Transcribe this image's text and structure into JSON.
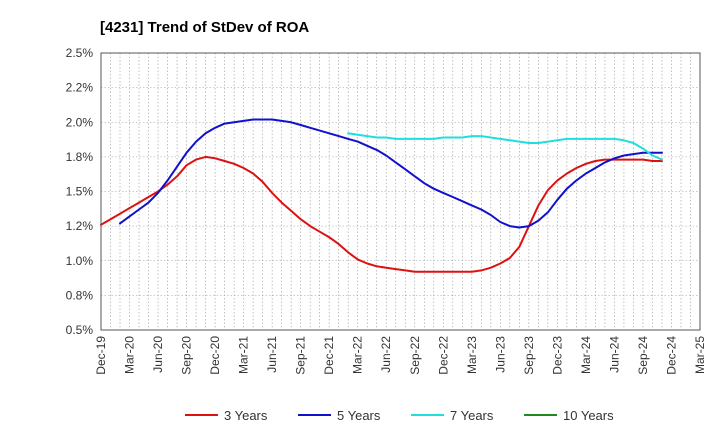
{
  "chart_data": {
    "type": "line",
    "title": "[4231]  Trend of StDev of ROA",
    "xlabel": "",
    "ylabel": "",
    "x_ticks": [
      "Dec-19",
      "Mar-20",
      "Jun-20",
      "Sep-20",
      "Dec-20",
      "Mar-21",
      "Jun-21",
      "Sep-21",
      "Dec-21",
      "Mar-22",
      "Jun-22",
      "Sep-22",
      "Dec-22",
      "Mar-23",
      "Jun-23",
      "Sep-23",
      "Dec-23",
      "Mar-24",
      "Jun-24",
      "Sep-24",
      "Dec-24",
      "Mar-25"
    ],
    "y_ticks": [
      "0.5%",
      "0.8%",
      "1.0%",
      "1.2%",
      "1.5%",
      "1.8%",
      "2.0%",
      "2.2%",
      "2.5%"
    ],
    "ylim": [
      0.5,
      2.5
    ],
    "grid": true,
    "legend_position": "bottom",
    "series": [
      {
        "name": "3 Years",
        "color": "#dd1111",
        "values": [
          [
            "Dec-19",
            1.26
          ],
          [
            "Jan-20",
            1.3
          ],
          [
            "Feb-20",
            1.34
          ],
          [
            "Mar-20",
            1.38
          ],
          [
            "Apr-20",
            1.42
          ],
          [
            "May-20",
            1.46
          ],
          [
            "Jun-20",
            1.5
          ],
          [
            "Jul-20",
            1.55
          ],
          [
            "Aug-20",
            1.61
          ],
          [
            "Sep-20",
            1.69
          ],
          [
            "Oct-20",
            1.73
          ],
          [
            "Nov-20",
            1.75
          ],
          [
            "Dec-20",
            1.74
          ],
          [
            "Jan-21",
            1.72
          ],
          [
            "Feb-21",
            1.7
          ],
          [
            "Mar-21",
            1.67
          ],
          [
            "Apr-21",
            1.63
          ],
          [
            "May-21",
            1.57
          ],
          [
            "Jun-21",
            1.49
          ],
          [
            "Jul-21",
            1.42
          ],
          [
            "Aug-21",
            1.36
          ],
          [
            "Sep-21",
            1.3
          ],
          [
            "Oct-21",
            1.25
          ],
          [
            "Nov-21",
            1.21
          ],
          [
            "Dec-21",
            1.17
          ],
          [
            "Jan-22",
            1.12
          ],
          [
            "Feb-22",
            1.06
          ],
          [
            "Mar-22",
            1.01
          ],
          [
            "Apr-22",
            0.98
          ],
          [
            "May-22",
            0.96
          ],
          [
            "Jun-22",
            0.95
          ],
          [
            "Jul-22",
            0.94
          ],
          [
            "Aug-22",
            0.93
          ],
          [
            "Sep-22",
            0.92
          ],
          [
            "Oct-22",
            0.92
          ],
          [
            "Nov-22",
            0.92
          ],
          [
            "Dec-22",
            0.92
          ],
          [
            "Jan-23",
            0.92
          ],
          [
            "Feb-23",
            0.92
          ],
          [
            "Mar-23",
            0.92
          ],
          [
            "Apr-23",
            0.93
          ],
          [
            "May-23",
            0.95
          ],
          [
            "Jun-23",
            0.98
          ],
          [
            "Jul-23",
            1.02
          ],
          [
            "Aug-23",
            1.1
          ],
          [
            "Sep-23",
            1.25
          ],
          [
            "Oct-23",
            1.4
          ],
          [
            "Nov-23",
            1.51
          ],
          [
            "Dec-23",
            1.58
          ],
          [
            "Jan-24",
            1.63
          ],
          [
            "Feb-24",
            1.67
          ],
          [
            "Mar-24",
            1.7
          ],
          [
            "Apr-24",
            1.72
          ],
          [
            "May-24",
            1.73
          ],
          [
            "Jun-24",
            1.73
          ],
          [
            "Jul-24",
            1.73
          ],
          [
            "Aug-24",
            1.73
          ],
          [
            "Sep-24",
            1.73
          ],
          [
            "Oct-24",
            1.72
          ],
          [
            "Nov-24",
            1.72
          ]
        ]
      },
      {
        "name": "5 Years",
        "color": "#1111cc",
        "values": [
          [
            "Feb-20",
            1.27
          ],
          [
            "Mar-20",
            1.32
          ],
          [
            "Apr-20",
            1.37
          ],
          [
            "May-20",
            1.42
          ],
          [
            "Jun-20",
            1.49
          ],
          [
            "Jul-20",
            1.58
          ],
          [
            "Aug-20",
            1.68
          ],
          [
            "Sep-20",
            1.78
          ],
          [
            "Oct-20",
            1.86
          ],
          [
            "Nov-20",
            1.92
          ],
          [
            "Dec-20",
            1.96
          ],
          [
            "Jan-21",
            1.99
          ],
          [
            "Feb-21",
            2.0
          ],
          [
            "Mar-21",
            2.01
          ],
          [
            "Apr-21",
            2.02
          ],
          [
            "May-21",
            2.02
          ],
          [
            "Jun-21",
            2.02
          ],
          [
            "Jul-21",
            2.01
          ],
          [
            "Aug-21",
            2.0
          ],
          [
            "Sep-21",
            1.98
          ],
          [
            "Oct-21",
            1.96
          ],
          [
            "Nov-21",
            1.94
          ],
          [
            "Dec-21",
            1.92
          ],
          [
            "Jan-22",
            1.9
          ],
          [
            "Feb-22",
            1.88
          ],
          [
            "Mar-22",
            1.86
          ],
          [
            "Apr-22",
            1.83
          ],
          [
            "May-22",
            1.8
          ],
          [
            "Jun-22",
            1.76
          ],
          [
            "Jul-22",
            1.71
          ],
          [
            "Aug-22",
            1.66
          ],
          [
            "Sep-22",
            1.61
          ],
          [
            "Oct-22",
            1.56
          ],
          [
            "Nov-22",
            1.52
          ],
          [
            "Dec-22",
            1.49
          ],
          [
            "Jan-23",
            1.46
          ],
          [
            "Feb-23",
            1.43
          ],
          [
            "Mar-23",
            1.4
          ],
          [
            "Apr-23",
            1.37
          ],
          [
            "May-23",
            1.33
          ],
          [
            "Jun-23",
            1.28
          ],
          [
            "Jul-23",
            1.25
          ],
          [
            "Aug-23",
            1.24
          ],
          [
            "Sep-23",
            1.25
          ],
          [
            "Oct-23",
            1.29
          ],
          [
            "Nov-23",
            1.35
          ],
          [
            "Dec-23",
            1.44
          ],
          [
            "Jan-24",
            1.52
          ],
          [
            "Feb-24",
            1.58
          ],
          [
            "Mar-24",
            1.63
          ],
          [
            "Apr-24",
            1.67
          ],
          [
            "May-24",
            1.71
          ],
          [
            "Jun-24",
            1.74
          ],
          [
            "Jul-24",
            1.76
          ],
          [
            "Aug-24",
            1.77
          ],
          [
            "Sep-24",
            1.78
          ],
          [
            "Oct-24",
            1.78
          ],
          [
            "Nov-24",
            1.78
          ]
        ]
      },
      {
        "name": "7 Years",
        "color": "#22dddd",
        "values": [
          [
            "Feb-22",
            1.92
          ],
          [
            "Mar-22",
            1.91
          ],
          [
            "Apr-22",
            1.9
          ],
          [
            "May-22",
            1.89
          ],
          [
            "Jun-22",
            1.89
          ],
          [
            "Jul-22",
            1.88
          ],
          [
            "Aug-22",
            1.88
          ],
          [
            "Sep-22",
            1.88
          ],
          [
            "Oct-22",
            1.88
          ],
          [
            "Nov-22",
            1.88
          ],
          [
            "Dec-22",
            1.89
          ],
          [
            "Jan-23",
            1.89
          ],
          [
            "Feb-23",
            1.89
          ],
          [
            "Mar-23",
            1.9
          ],
          [
            "Apr-23",
            1.9
          ],
          [
            "May-23",
            1.89
          ],
          [
            "Jun-23",
            1.88
          ],
          [
            "Jul-23",
            1.87
          ],
          [
            "Aug-23",
            1.86
          ],
          [
            "Sep-23",
            1.85
          ],
          [
            "Oct-23",
            1.85
          ],
          [
            "Nov-23",
            1.86
          ],
          [
            "Dec-23",
            1.87
          ],
          [
            "Jan-24",
            1.88
          ],
          [
            "Feb-24",
            1.88
          ],
          [
            "Mar-24",
            1.88
          ],
          [
            "Apr-24",
            1.88
          ],
          [
            "May-24",
            1.88
          ],
          [
            "Jun-24",
            1.88
          ],
          [
            "Jul-24",
            1.87
          ],
          [
            "Aug-24",
            1.85
          ],
          [
            "Sep-24",
            1.81
          ],
          [
            "Oct-24",
            1.76
          ],
          [
            "Nov-24",
            1.73
          ]
        ]
      },
      {
        "name": "10 Years",
        "color": "#228822",
        "values": []
      }
    ]
  }
}
